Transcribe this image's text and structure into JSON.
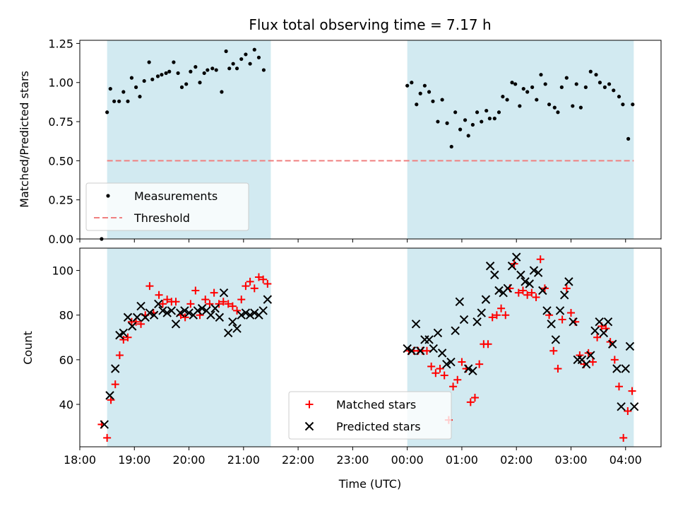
{
  "figure_title": "Flux total observing time = 7.17 h",
  "colors": {
    "span": "#add8e6",
    "measurement": "#000000",
    "threshold": "#f08080",
    "matched": "#ff0000",
    "predicted": "#000000"
  },
  "chart_data": [
    {
      "type": "scatter",
      "panel": "top",
      "ylabel": "Matched/Predicted stars",
      "xlim": [
        18.0,
        28.65
      ],
      "ylim": [
        0.0,
        1.27
      ],
      "yticks": [
        0.0,
        0.25,
        0.5,
        0.75,
        1.0,
        1.25
      ],
      "ytick_labels": [
        "0.00",
        "0.25",
        "0.50",
        "0.75",
        "1.00",
        "1.25"
      ],
      "shaded_spans": [
        [
          18.5,
          21.5
        ],
        [
          24.0,
          28.15
        ]
      ],
      "legend_position": "lower-left",
      "legend": [
        "Measurements",
        "Threshold"
      ],
      "threshold": {
        "name": "Threshold",
        "x": [
          18.5,
          28.15
        ],
        "y": 0.5
      },
      "series": [
        {
          "name": "Measurements",
          "marker": "dot",
          "x": [
            18.4,
            18.5,
            18.56,
            18.63,
            18.72,
            18.8,
            18.88,
            18.95,
            19.03,
            19.1,
            19.18,
            19.27,
            19.33,
            19.43,
            19.5,
            19.58,
            19.64,
            19.72,
            19.8,
            19.87,
            19.95,
            20.03,
            20.12,
            20.2,
            20.28,
            20.34,
            20.43,
            20.5,
            20.6,
            20.68,
            20.74,
            20.81,
            20.88,
            20.96,
            21.04,
            21.12,
            21.2,
            21.28,
            21.37,
            24.0,
            24.08,
            24.17,
            24.24,
            24.32,
            24.4,
            24.47,
            24.56,
            24.64,
            24.73,
            24.81,
            24.88,
            24.97,
            25.06,
            25.12,
            25.2,
            25.28,
            25.36,
            25.45,
            25.51,
            25.6,
            25.68,
            25.75,
            25.83,
            25.92,
            25.98,
            26.06,
            26.13,
            26.2,
            26.29,
            26.37,
            26.45,
            26.53,
            26.6,
            26.7,
            26.76,
            26.83,
            26.92,
            27.03,
            27.1,
            27.18,
            27.27,
            27.36,
            27.46,
            27.53,
            27.62,
            27.7,
            27.78,
            27.88,
            27.95,
            28.05,
            28.13
          ],
          "y": [
            0.0,
            0.81,
            0.96,
            0.88,
            0.88,
            0.94,
            0.88,
            1.03,
            0.97,
            0.91,
            1.01,
            1.13,
            1.02,
            1.04,
            1.05,
            1.06,
            1.07,
            1.13,
            1.06,
            0.97,
            0.99,
            1.07,
            1.1,
            1.0,
            1.06,
            1.08,
            1.09,
            1.08,
            0.94,
            1.2,
            1.09,
            1.12,
            1.09,
            1.15,
            1.18,
            1.12,
            1.21,
            1.16,
            1.08,
            0.98,
            1.0,
            0.86,
            0.93,
            0.98,
            0.94,
            0.88,
            0.75,
            0.89,
            0.74,
            0.59,
            0.81,
            0.7,
            0.76,
            0.66,
            0.73,
            0.81,
            0.75,
            0.82,
            0.77,
            0.77,
            0.81,
            0.91,
            0.89,
            1.0,
            0.99,
            0.85,
            0.96,
            0.94,
            0.97,
            0.89,
            1.05,
            0.99,
            0.86,
            0.84,
            0.81,
            0.97,
            1.03,
            0.85,
            0.99,
            0.84,
            0.97,
            1.07,
            1.05,
            1.0,
            0.97,
            0.99,
            0.95,
            0.91,
            0.86,
            0.64,
            0.86
          ]
        }
      ]
    },
    {
      "type": "scatter",
      "panel": "bottom",
      "xlabel": "Time (UTC)",
      "ylabel": "Count",
      "xlim": [
        18.0,
        28.65
      ],
      "ylim": [
        21,
        110
      ],
      "yticks": [
        40,
        60,
        80,
        100
      ],
      "xticks": [
        18,
        19,
        20,
        21,
        22,
        23,
        24,
        25,
        26,
        27,
        28
      ],
      "xtick_labels": [
        "18:00",
        "19:00",
        "20:00",
        "21:00",
        "22:00",
        "23:00",
        "00:00",
        "01:00",
        "02:00",
        "03:00",
        "04:00"
      ],
      "shaded_spans": [
        [
          18.5,
          21.5
        ],
        [
          24.0,
          28.15
        ]
      ],
      "legend_position": "lower-center",
      "legend": [
        "Matched stars",
        "Predicted stars"
      ],
      "series": [
        {
          "name": "Matched stars",
          "marker": "plus",
          "x": [
            18.4,
            18.5,
            18.57,
            18.65,
            18.73,
            18.8,
            18.88,
            18.95,
            19.03,
            19.12,
            19.2,
            19.28,
            19.35,
            19.45,
            19.52,
            19.6,
            19.68,
            19.76,
            19.85,
            19.93,
            20.03,
            20.12,
            20.2,
            20.3,
            20.38,
            20.46,
            20.55,
            20.63,
            20.72,
            20.8,
            20.88,
            20.96,
            21.04,
            21.12,
            21.2,
            21.28,
            21.36,
            21.44,
            24.03,
            24.12,
            24.2,
            24.28,
            24.36,
            24.44,
            24.52,
            24.6,
            24.68,
            24.76,
            24.84,
            24.92,
            25.0,
            25.08,
            25.16,
            25.24,
            25.32,
            25.4,
            25.48,
            25.56,
            25.64,
            25.72,
            25.8,
            25.88,
            25.96,
            26.04,
            26.12,
            26.2,
            26.28,
            26.36,
            26.44,
            26.52,
            26.6,
            26.68,
            26.76,
            26.84,
            26.92,
            27.0,
            27.08,
            27.16,
            27.24,
            27.32,
            27.4,
            27.48,
            27.56,
            27.64,
            27.72,
            27.8,
            27.88,
            27.96,
            28.04,
            28.12
          ],
          "y": [
            31,
            25,
            42,
            49,
            62,
            69,
            70,
            77,
            77,
            76,
            80,
            93,
            81,
            89,
            85,
            87,
            86,
            86,
            80,
            79,
            85,
            91,
            80,
            87,
            85,
            90,
            85,
            86,
            85,
            84,
            82,
            87,
            93,
            95,
            92,
            97,
            96,
            94,
            64,
            64,
            64,
            64,
            64,
            57,
            54,
            56,
            53,
            33,
            48,
            51,
            59,
            56,
            41,
            43,
            58,
            67,
            67,
            79,
            80,
            83,
            80,
            92,
            103,
            90,
            91,
            89,
            90,
            88,
            105,
            92,
            80,
            64,
            56,
            78,
            92,
            81,
            77,
            62,
            58,
            63,
            59,
            70,
            75,
            74,
            68,
            60,
            48,
            25,
            37,
            46
          ]
        },
        {
          "name": "Predicted stars",
          "marker": "x",
          "x": [
            18.45,
            18.55,
            18.65,
            18.73,
            18.8,
            18.88,
            18.96,
            19.05,
            19.12,
            19.2,
            19.28,
            19.36,
            19.44,
            19.52,
            19.6,
            19.68,
            19.76,
            19.84,
            19.92,
            20.0,
            20.08,
            20.16,
            20.24,
            20.32,
            20.4,
            20.48,
            20.56,
            20.64,
            20.72,
            20.8,
            20.88,
            20.96,
            21.04,
            21.12,
            21.2,
            21.28,
            21.36,
            21.44,
            24.0,
            24.08,
            24.16,
            24.24,
            24.32,
            24.4,
            24.48,
            24.56,
            24.64,
            24.72,
            24.8,
            24.88,
            24.96,
            25.04,
            25.12,
            25.2,
            25.28,
            25.36,
            25.44,
            25.52,
            25.6,
            25.68,
            25.76,
            25.84,
            25.92,
            26.0,
            26.08,
            26.16,
            26.24,
            26.32,
            26.4,
            26.48,
            26.56,
            26.64,
            26.72,
            26.8,
            26.88,
            26.96,
            27.04,
            27.12,
            27.2,
            27.28,
            27.36,
            27.44,
            27.52,
            27.6,
            27.68,
            27.76,
            27.84,
            27.92,
            28.0,
            28.08,
            28.16
          ],
          "y": [
            31,
            44,
            56,
            71,
            72,
            79,
            75,
            79,
            84,
            79,
            81,
            80,
            85,
            82,
            81,
            82,
            76,
            81,
            82,
            81,
            80,
            82,
            83,
            82,
            80,
            83,
            79,
            90,
            72,
            77,
            74,
            80,
            81,
            80,
            81,
            80,
            82,
            87,
            65,
            64,
            76,
            64,
            69,
            69,
            65,
            72,
            63,
            58,
            59,
            73,
            86,
            78,
            56,
            55,
            77,
            81,
            87,
            102,
            98,
            91,
            90,
            92,
            102,
            106,
            98,
            95,
            94,
            100,
            99,
            91,
            82,
            76,
            69,
            82,
            89,
            95,
            77,
            60,
            60,
            58,
            62,
            73,
            77,
            72,
            77,
            67,
            56,
            39,
            56,
            66,
            39
          ]
        }
      ]
    }
  ]
}
